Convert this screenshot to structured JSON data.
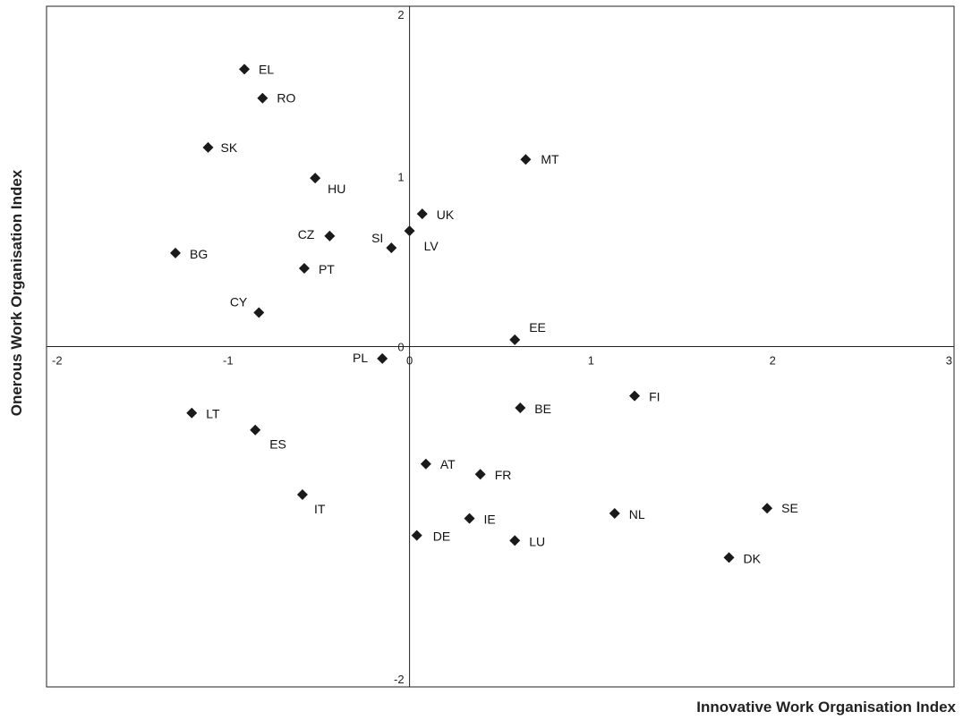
{
  "chart_data": {
    "type": "scatter",
    "title": "",
    "xlabel": "Innovative Work Organisation Index",
    "ylabel": "Onerous Work Organisation Index",
    "xlim": [
      -2,
      3
    ],
    "ylim": [
      -2,
      2
    ],
    "x_ticks": [
      -2,
      -1,
      0,
      1,
      2,
      3
    ],
    "y_ticks": [
      -2,
      0,
      1,
      2
    ],
    "marker": "diamond",
    "marker_color": "#1a1a1a",
    "grid": false,
    "legend": "none",
    "points": [
      {
        "label": "EL",
        "x": -0.91,
        "y": 1.63
      },
      {
        "label": "RO",
        "x": -0.81,
        "y": 1.46
      },
      {
        "label": "SK",
        "x": -1.11,
        "y": 1.17
      },
      {
        "label": "HU",
        "x": -0.52,
        "y": 0.99
      },
      {
        "label": "MT",
        "x": 0.64,
        "y": 1.1
      },
      {
        "label": "UK",
        "x": 0.07,
        "y": 0.78
      },
      {
        "label": "SI",
        "x": -0.1,
        "y": 0.58
      },
      {
        "label": "LV",
        "x": 0.0,
        "y": 0.68
      },
      {
        "label": "CZ",
        "x": -0.44,
        "y": 0.65
      },
      {
        "label": "BG",
        "x": -1.29,
        "y": 0.55
      },
      {
        "label": "PT",
        "x": -0.58,
        "y": 0.46
      },
      {
        "label": "CY",
        "x": -0.83,
        "y": 0.2
      },
      {
        "label": "EE",
        "x": 0.58,
        "y": 0.04
      },
      {
        "label": "PL",
        "x": -0.15,
        "y": -0.07
      },
      {
        "label": "FI",
        "x": 1.24,
        "y": -0.29
      },
      {
        "label": "BE",
        "x": 0.61,
        "y": -0.36
      },
      {
        "label": "LT",
        "x": -1.2,
        "y": -0.39
      },
      {
        "label": "ES",
        "x": -0.85,
        "y": -0.49
      },
      {
        "label": "AT",
        "x": 0.09,
        "y": -0.69
      },
      {
        "label": "FR",
        "x": 0.39,
        "y": -0.75
      },
      {
        "label": "IT",
        "x": -0.59,
        "y": -0.87
      },
      {
        "label": "IE",
        "x": 0.33,
        "y": -1.01
      },
      {
        "label": "DE",
        "x": 0.04,
        "y": -1.11
      },
      {
        "label": "LU",
        "x": 0.58,
        "y": -1.14
      },
      {
        "label": "NL",
        "x": 1.13,
        "y": -0.98
      },
      {
        "label": "SE",
        "x": 1.97,
        "y": -0.95
      },
      {
        "label": "DK",
        "x": 1.76,
        "y": -1.24
      }
    ]
  }
}
